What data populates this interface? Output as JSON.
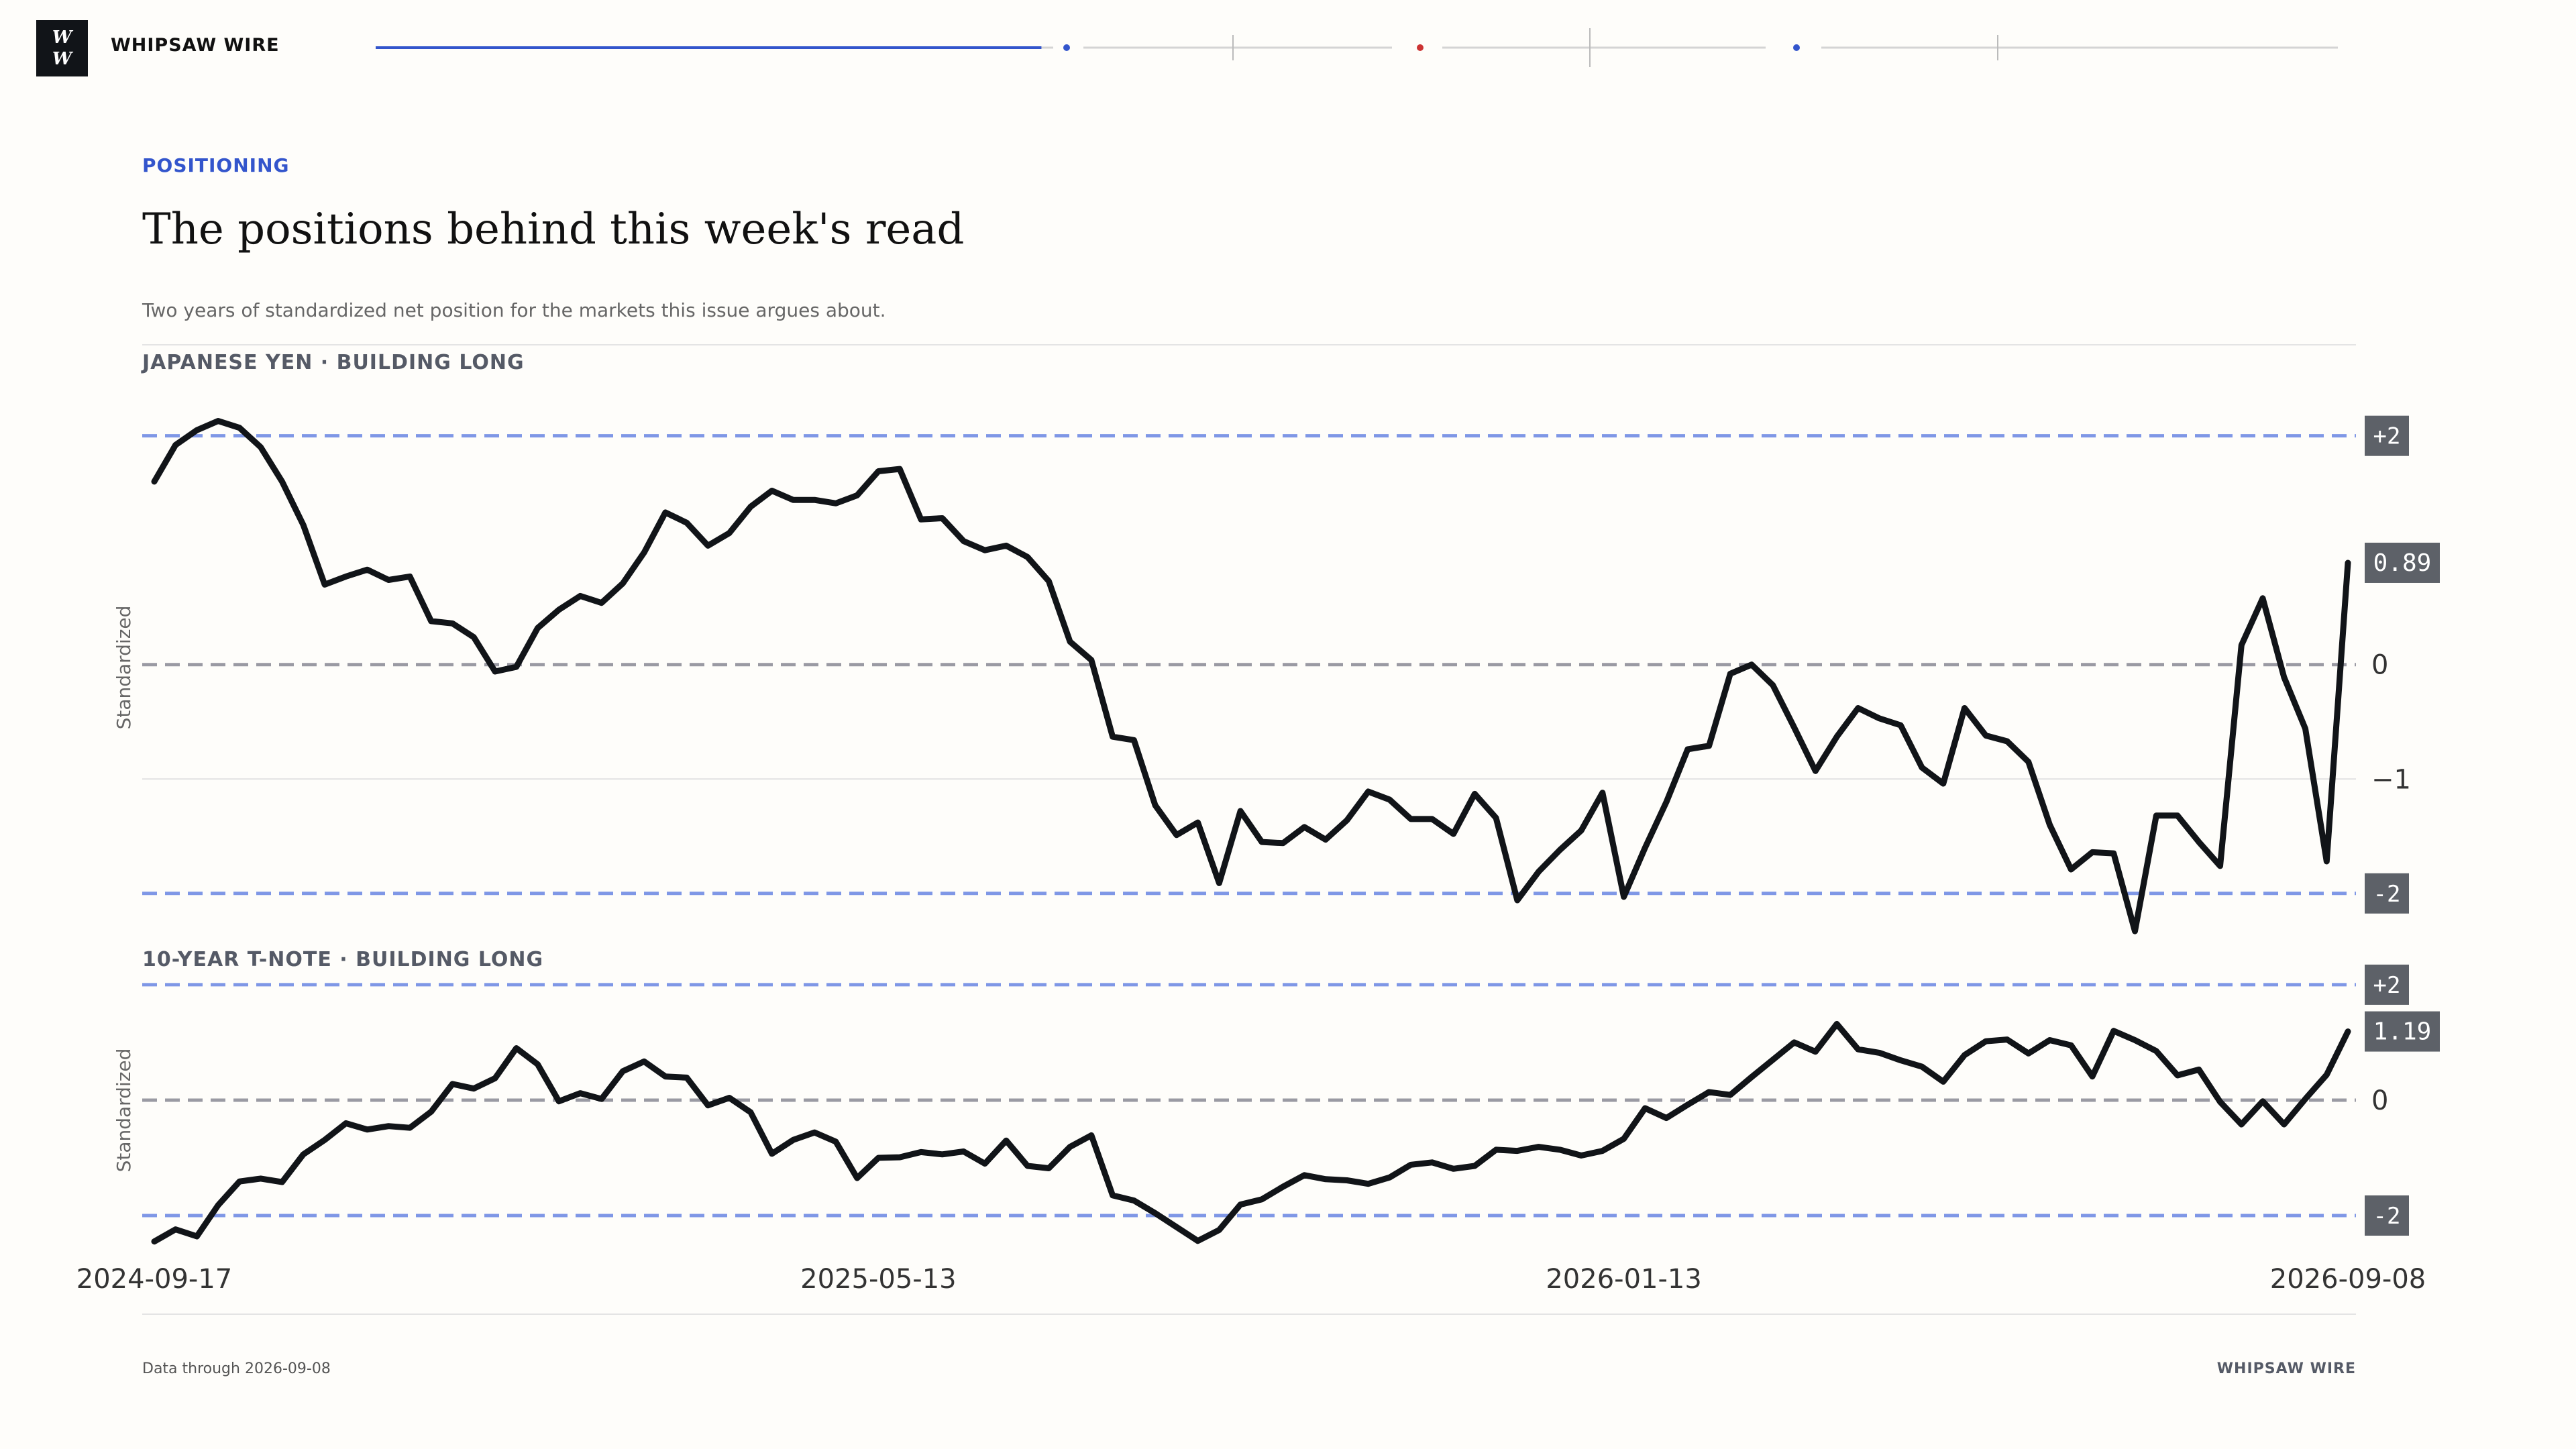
{
  "header": {
    "logo_line1": "W",
    "logo_line2": "W",
    "brand": "WHIPSAW WIRE",
    "reading_progress": 0.29
  },
  "article": {
    "kicker": "POSITIONING",
    "title": "The positions behind this week's read",
    "subtitle": "Two years of standardized net position for the markets this issue argues about."
  },
  "footer": {
    "note": "Data through 2026-09-08",
    "brand": "WHIPSAW WIRE"
  },
  "colors": {
    "accent": "#3355cc",
    "band_line": "#7f97e6",
    "zero_line": "#9a9aa3",
    "series": "#111418",
    "badge": "#5d6168"
  },
  "chart_data": [
    {
      "type": "line",
      "title": "JAPANESE YEN · BUILDING LONG",
      "ylabel": "Standardized",
      "ylim": [
        -2.4,
        2.35
      ],
      "yticks": [
        "+2",
        "0",
        "−1",
        "-2"
      ],
      "bands": [
        2,
        -2
      ],
      "grid": "horizontal",
      "last_value_label": "0.89",
      "x_start": "2024-09-17",
      "x_end": "2026-09-08",
      "xticks": [
        "2024-09-17",
        "2025-05-13",
        "2026-01-13",
        "2026-09-08"
      ],
      "values": [
        1.6,
        1.92,
        2.05,
        2.13,
        2.07,
        1.9,
        1.6,
        1.22,
        0.7,
        0.77,
        0.83,
        0.74,
        0.77,
        0.38,
        0.36,
        0.24,
        -0.06,
        -0.02,
        0.32,
        0.48,
        0.6,
        0.54,
        0.71,
        0.98,
        1.33,
        1.24,
        1.04,
        1.15,
        1.38,
        1.52,
        1.44,
        1.44,
        1.41,
        1.48,
        1.69,
        1.71,
        1.27,
        1.28,
        1.08,
        1.0,
        1.04,
        0.94,
        0.73,
        0.2,
        0.04,
        -0.63,
        -0.66,
        -1.23,
        -1.49,
        -1.38,
        -1.91,
        -1.28,
        -1.55,
        -1.56,
        -1.42,
        -1.53,
        -1.36,
        -1.11,
        -1.18,
        -1.35,
        -1.35,
        -1.48,
        -1.13,
        -1.34,
        -2.06,
        -1.81,
        -1.62,
        -1.45,
        -1.12,
        -2.03,
        -1.6,
        -1.2,
        -0.74,
        -0.71,
        -0.08,
        0.0,
        -0.18,
        -0.55,
        -0.93,
        -0.63,
        -0.38,
        -0.47,
        -0.53,
        -0.9,
        -1.04,
        -0.38,
        -0.62,
        -0.67,
        -0.85,
        -1.4,
        -1.79,
        -1.64,
        -1.65,
        -2.33,
        -1.32,
        -1.32,
        -1.55,
        -1.76,
        0.17,
        0.58,
        -0.11,
        -0.56,
        -1.72,
        0.89
      ]
    },
    {
      "type": "line",
      "title": "10-YEAR T-NOTE · BUILDING LONG",
      "ylabel": "Standardized",
      "ylim": [
        -2.5,
        2.15
      ],
      "yticks": [
        "+2",
        "0",
        "-2"
      ],
      "bands": [
        2,
        -2
      ],
      "grid": "horizontal",
      "last_value_label": "1.19",
      "x_start": "2024-09-17",
      "x_end": "2026-09-08",
      "xticks": [
        "2024-09-17",
        "2025-05-13",
        "2026-01-13",
        "2026-09-08"
      ],
      "values": [
        -2.45,
        -2.24,
        -2.36,
        -1.82,
        -1.41,
        -1.36,
        -1.42,
        -0.94,
        -0.69,
        -0.4,
        -0.51,
        -0.45,
        -0.48,
        -0.2,
        0.28,
        0.2,
        0.38,
        0.9,
        0.62,
        -0.02,
        0.12,
        0.02,
        0.5,
        0.67,
        0.41,
        0.39,
        -0.09,
        0.04,
        -0.21,
        -0.93,
        -0.69,
        -0.56,
        -0.72,
        -1.35,
        -1.0,
        -0.99,
        -0.9,
        -0.94,
        -0.89,
        -1.1,
        -0.7,
        -1.14,
        -1.18,
        -0.81,
        -0.61,
        -1.65,
        -1.74,
        -1.96,
        -2.2,
        -2.44,
        -2.25,
        -1.81,
        -1.72,
        -1.5,
        -1.3,
        -1.37,
        -1.39,
        -1.45,
        -1.34,
        -1.12,
        -1.08,
        -1.19,
        -1.14,
        -0.86,
        -0.88,
        -0.81,
        -0.86,
        -0.96,
        -0.88,
        -0.67,
        -0.14,
        -0.31,
        -0.08,
        0.14,
        0.09,
        0.4,
        0.7,
        1.0,
        0.84,
        1.32,
        0.88,
        0.82,
        0.69,
        0.58,
        0.32,
        0.78,
        1.02,
        1.05,
        0.81,
        1.04,
        0.95,
        0.41,
        1.2,
        1.04,
        0.85,
        0.43,
        0.53,
        -0.03,
        -0.42,
        -0.02,
        -0.42,
        0.02,
        0.44,
        1.19
      ]
    }
  ]
}
